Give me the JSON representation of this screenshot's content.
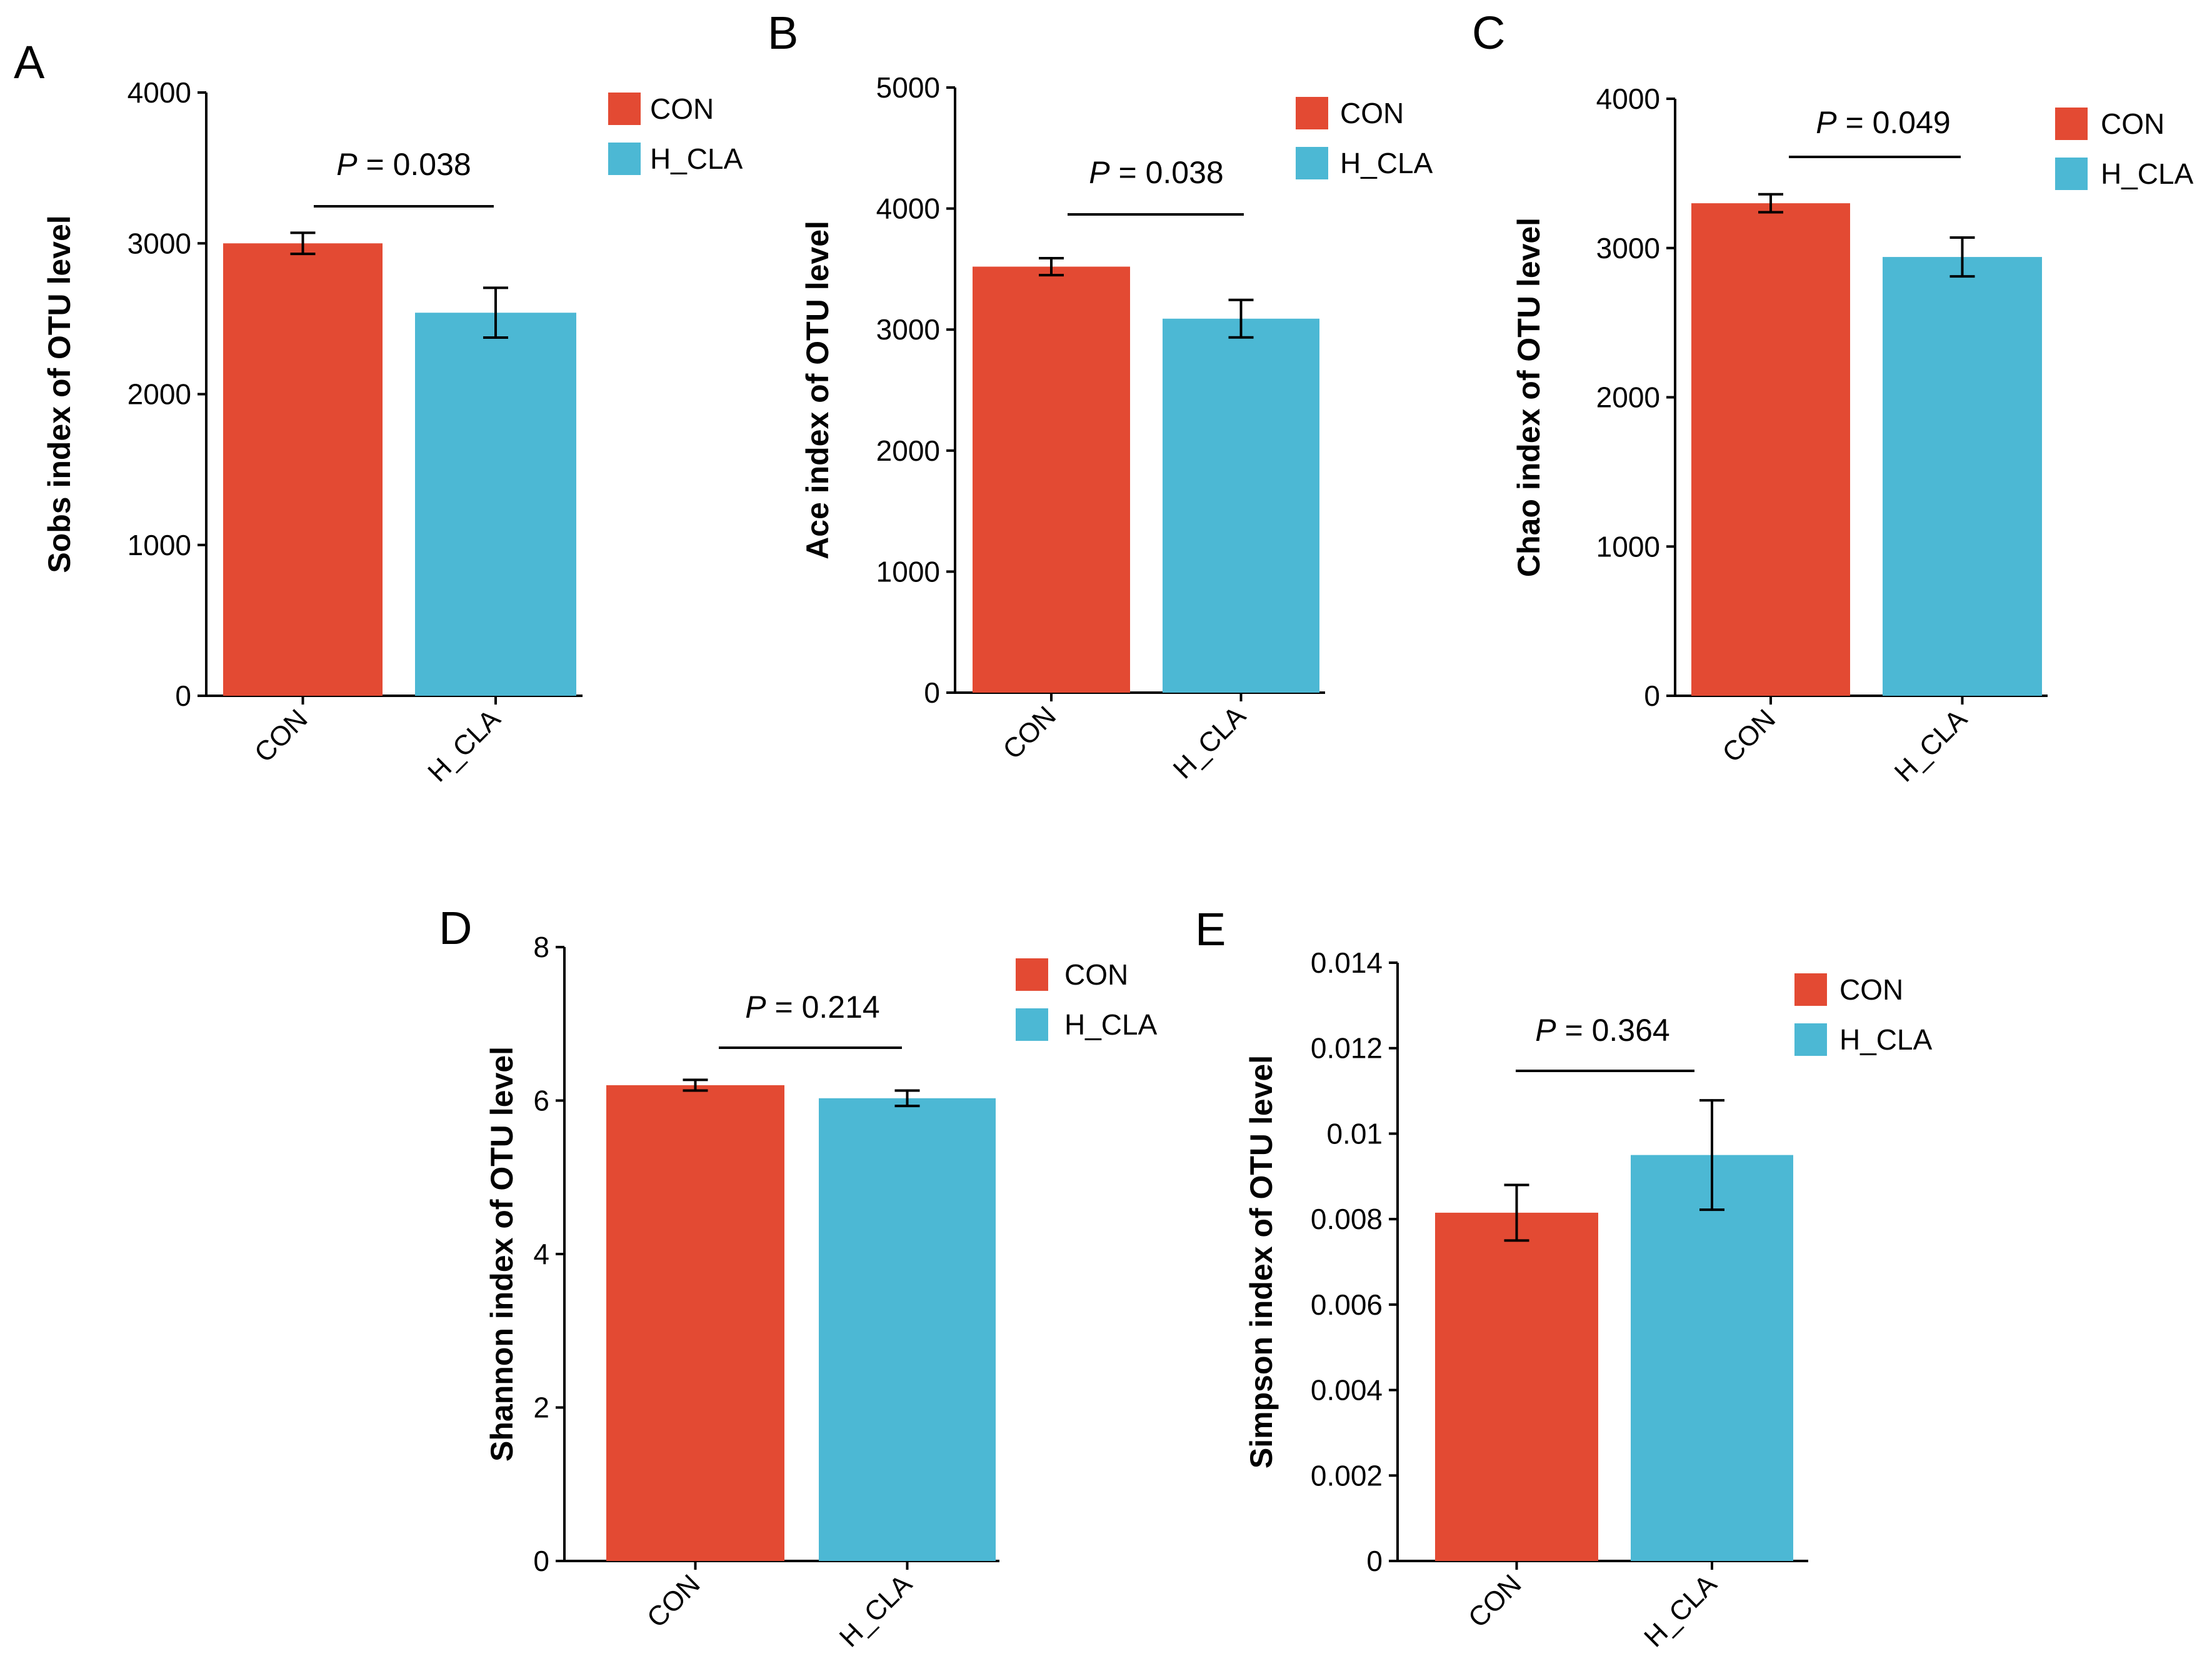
{
  "colors": {
    "CON": "#E34A33",
    "H_CLA": "#4CB8D4"
  },
  "chart_data": [
    {
      "panel": "A",
      "type": "bar",
      "ylabel": "Sobs index of OTU level",
      "categories": [
        "CON",
        "H_CLA"
      ],
      "values": [
        3000,
        2540
      ],
      "errors": [
        70,
        165
      ],
      "ylim": [
        0,
        4000
      ],
      "yticks": [
        "0",
        "1000",
        "2000",
        "3000",
        "4000"
      ],
      "legend": [
        "CON",
        "H_CLA"
      ],
      "p_label": "P",
      "p_value": " = 0.038"
    },
    {
      "panel": "B",
      "type": "bar",
      "ylabel": "Ace index of OTU level",
      "categories": [
        "CON",
        "H_CLA"
      ],
      "values": [
        3520,
        3090
      ],
      "errors": [
        70,
        155
      ],
      "ylim": [
        0,
        5000
      ],
      "yticks": [
        "0",
        "1000",
        "2000",
        "3000",
        "4000",
        "5000"
      ],
      "legend": [
        "CON",
        "H_CLA"
      ],
      "p_label": "P",
      "p_value": " = 0.038"
    },
    {
      "panel": "C",
      "type": "bar",
      "ylabel": "Chao index of OTU level",
      "categories": [
        "CON",
        "H_CLA"
      ],
      "values": [
        3300,
        2940
      ],
      "errors": [
        60,
        130
      ],
      "ylim": [
        0,
        4000
      ],
      "yticks": [
        "0",
        "1000",
        "2000",
        "3000",
        "4000"
      ],
      "legend": [
        "CON",
        "H_CLA"
      ],
      "p_label": "P",
      "p_value": " = 0.049"
    },
    {
      "panel": "D",
      "type": "bar",
      "ylabel": "Shannon index of OTU level",
      "categories": [
        "CON",
        "H_CLA"
      ],
      "values": [
        6.2,
        6.03
      ],
      "errors": [
        0.07,
        0.1
      ],
      "ylim": [
        0,
        8
      ],
      "yticks": [
        "0",
        "2",
        "4",
        "6",
        "8"
      ],
      "legend": [
        "CON",
        "H_CLA"
      ],
      "p_label": "P",
      "p_value": " = 0.214"
    },
    {
      "panel": "E",
      "type": "bar",
      "ylabel": "Simpson index of OTU level",
      "categories": [
        "CON",
        "H_CLA"
      ],
      "values": [
        0.00815,
        0.0095
      ],
      "errors": [
        0.00065,
        0.00128
      ],
      "ylim": [
        0,
        0.014
      ],
      "yticks": [
        "0",
        "0.002",
        "0.004",
        "0.006",
        "0.008",
        "0.01",
        "0.012",
        "0.014"
      ],
      "legend": [
        "CON",
        "H_CLA"
      ],
      "p_label": "P",
      "p_value": " = 0.364"
    }
  ]
}
